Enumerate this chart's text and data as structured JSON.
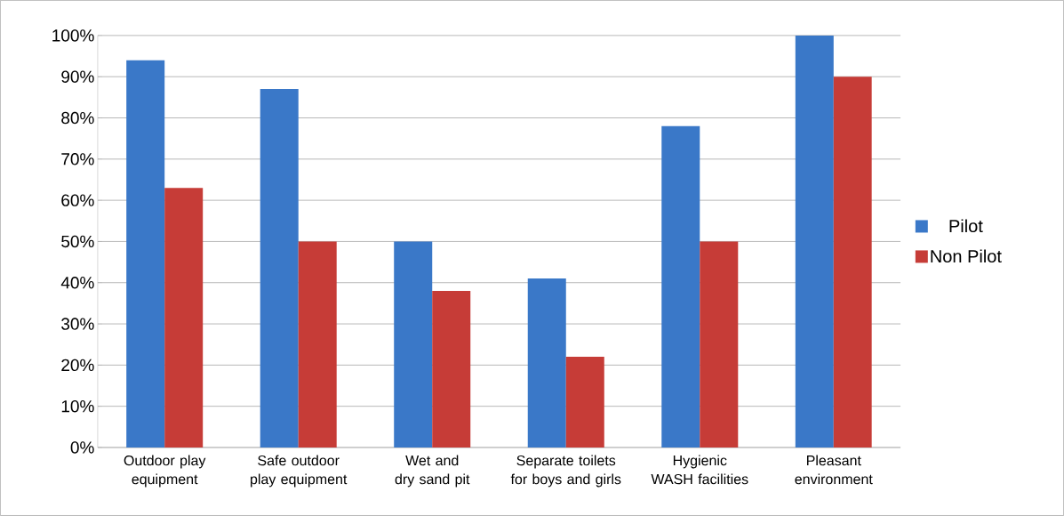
{
  "chart_data": {
    "type": "bar",
    "categories": [
      "Outdoor play equipment",
      "Safe outdoor play equipment",
      "Wet and dry sand pit",
      "Separate toilets for boys and girls",
      "Hygienic WASH facilities",
      "Pleasant environment"
    ],
    "series": [
      {
        "name": "Pilot",
        "color": "#3a78c8",
        "values": [
          94,
          87,
          50,
          41,
          78,
          100
        ]
      },
      {
        "name": "Non  Pilot",
        "color": "#c63c37",
        "values": [
          63,
          50,
          38,
          22,
          50,
          90
        ]
      }
    ],
    "ylim": [
      0,
      100
    ],
    "yticks": [
      {
        "value": 0,
        "label": "0%"
      },
      {
        "value": 10,
        "label": "10%"
      },
      {
        "value": 20,
        "label": "20%"
      },
      {
        "value": 30,
        "label": "30%"
      },
      {
        "value": 40,
        "label": "40%"
      },
      {
        "value": 50,
        "label": "50%"
      },
      {
        "value": 60,
        "label": "60%"
      },
      {
        "value": 70,
        "label": "70%"
      },
      {
        "value": 80,
        "label": "80%"
      },
      {
        "value": 90,
        "label": "90%"
      },
      {
        "value": 100,
        "label": "100%"
      }
    ],
    "grid": "y",
    "legend": "right"
  }
}
